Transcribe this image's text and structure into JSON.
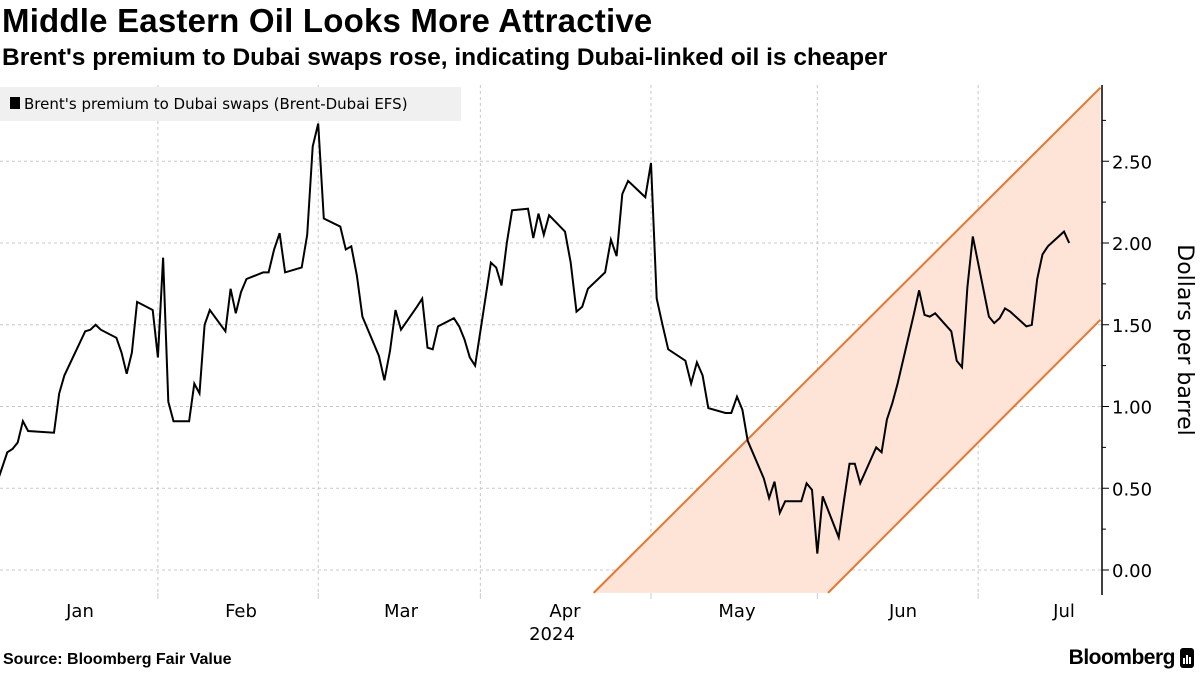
{
  "header": {
    "title": "Middle Eastern Oil Looks More Attractive",
    "subtitle": "Brent's premium to Dubai swaps rose, indicating Dubai-linked oil is cheaper"
  },
  "footer": {
    "source": "Source: Bloomberg Fair Value",
    "logo": "Bloomberg"
  },
  "chart_data": {
    "type": "line",
    "title": "Middle Eastern Oil Looks More Attractive",
    "subtitle": "Brent's premium to Dubai swaps rose, indicating Dubai-linked oil is cheaper",
    "ylabel": "Dollars per barrel",
    "xlabel": "",
    "y_axis_side": "right",
    "ylim": [
      -0.14,
      2.97
    ],
    "yticks": [
      "0.00",
      "0.50",
      "1.00",
      "1.50",
      "2.00",
      "2.50"
    ],
    "ytick_values": [
      0,
      0.5,
      1,
      1.5,
      2,
      2.5
    ],
    "minor_ytick_values": [
      0.25,
      0.75,
      1.25,
      1.75,
      2.25,
      2.75
    ],
    "xticks": [
      {
        "label": "Jan",
        "date": "2024-01-01"
      },
      {
        "label": "Feb",
        "date": "2024-02-01"
      },
      {
        "label": "Mar",
        "date": "2024-03-01"
      },
      {
        "label": "Apr",
        "date": "2024-04-01"
      },
      {
        "label": "May",
        "date": "2024-05-01"
      },
      {
        "label": "Jun",
        "date": "2024-06-01"
      },
      {
        "label": "Jul",
        "date": "2024-07-01"
      }
    ],
    "year_label": "2024",
    "grid": true,
    "legend": {
      "position": "top-left",
      "entries": [
        "Brent's premium to Dubai swaps (Brent-Dubai EFS)"
      ]
    },
    "colors": {
      "series": "#000000",
      "channel_line": "#e8762c",
      "channel_fill": "#fde4d7",
      "grid": "#c8c8c8"
    },
    "series": [
      {
        "name": "Brent's premium to Dubai swaps (Brent-Dubai EFS)",
        "x": [
          "2023-12-15",
          "2023-12-18",
          "2023-12-19",
          "2023-12-20",
          "2023-12-21",
          "2023-12-22",
          "2023-12-27",
          "2023-12-28",
          "2023-12-29",
          "2024-01-02",
          "2024-01-03",
          "2024-01-04",
          "2024-01-05",
          "2024-01-08",
          "2024-01-09",
          "2024-01-10",
          "2024-01-11",
          "2024-01-12",
          "2024-01-15",
          "2024-01-16",
          "2024-01-17",
          "2024-01-18",
          "2024-01-19",
          "2024-01-22",
          "2024-01-23",
          "2024-01-24",
          "2024-01-25",
          "2024-01-26",
          "2024-01-29",
          "2024-01-30",
          "2024-01-31",
          "2024-02-01",
          "2024-02-02",
          "2024-02-05",
          "2024-02-06",
          "2024-02-07",
          "2024-02-08",
          "2024-02-09",
          "2024-02-12",
          "2024-02-13",
          "2024-02-14",
          "2024-02-15",
          "2024-02-16",
          "2024-02-19",
          "2024-02-20",
          "2024-02-21",
          "2024-02-22",
          "2024-02-23",
          "2024-02-26",
          "2024-02-27",
          "2024-02-28",
          "2024-02-29",
          "2024-03-01",
          "2024-03-04",
          "2024-03-05",
          "2024-03-06",
          "2024-03-07",
          "2024-03-08",
          "2024-03-11",
          "2024-03-12",
          "2024-03-13",
          "2024-03-14",
          "2024-03-15",
          "2024-03-18",
          "2024-03-19",
          "2024-03-20",
          "2024-03-21",
          "2024-03-22",
          "2024-03-25",
          "2024-03-26",
          "2024-03-27",
          "2024-03-28",
          "2024-03-29",
          "2024-04-01",
          "2024-04-02",
          "2024-04-03",
          "2024-04-04",
          "2024-04-05",
          "2024-04-08",
          "2024-04-09",
          "2024-04-10",
          "2024-04-11",
          "2024-04-12",
          "2024-04-15",
          "2024-04-16",
          "2024-04-17",
          "2024-04-18",
          "2024-04-19",
          "2024-04-22",
          "2024-04-23",
          "2024-04-24",
          "2024-04-25",
          "2024-04-26",
          "2024-04-29",
          "2024-04-30",
          "2024-05-01",
          "2024-05-02",
          "2024-05-03",
          "2024-05-06",
          "2024-05-07",
          "2024-05-08",
          "2024-05-09",
          "2024-05-10",
          "2024-05-13",
          "2024-05-14",
          "2024-05-15",
          "2024-05-16",
          "2024-05-17",
          "2024-05-20",
          "2024-05-21",
          "2024-05-22",
          "2024-05-23",
          "2024-05-24",
          "2024-05-27",
          "2024-05-28",
          "2024-05-29",
          "2024-05-30",
          "2024-05-31",
          "2024-06-03",
          "2024-06-04",
          "2024-06-05",
          "2024-06-06",
          "2024-06-07",
          "2024-06-10",
          "2024-06-11",
          "2024-06-12",
          "2024-06-13",
          "2024-06-14",
          "2024-06-17",
          "2024-06-18",
          "2024-06-19",
          "2024-06-20",
          "2024-06-21",
          "2024-06-24",
          "2024-06-25",
          "2024-06-26",
          "2024-06-27",
          "2024-06-28",
          "2024-07-01",
          "2024-07-02"
        ],
        "values": [
          0.44,
          0.72,
          0.74,
          0.78,
          0.91,
          0.85,
          0.84,
          1.08,
          1.19,
          1.46,
          1.47,
          1.5,
          1.47,
          1.42,
          1.33,
          1.2,
          1.33,
          1.64,
          1.59,
          1.3,
          1.91,
          1.03,
          0.91,
          0.91,
          1.14,
          1.08,
          1.5,
          1.59,
          1.46,
          1.72,
          1.57,
          1.7,
          1.78,
          1.82,
          1.82,
          1.96,
          2.06,
          1.82,
          1.85,
          2.05,
          2.59,
          2.73,
          2.15,
          2.1,
          1.96,
          1.98,
          1.8,
          1.55,
          1.31,
          1.16,
          1.34,
          1.59,
          1.47,
          1.61,
          1.66,
          1.36,
          1.35,
          1.49,
          1.54,
          1.49,
          1.41,
          1.3,
          1.25,
          1.88,
          1.85,
          1.74,
          2.0,
          2.2,
          2.21,
          2.03,
          2.18,
          2.05,
          2.17,
          2.07,
          1.88,
          1.58,
          1.61,
          1.72,
          1.82,
          2.02,
          1.92,
          2.3,
          2.38,
          2.28,
          2.49,
          1.66,
          1.5,
          1.35,
          1.28,
          1.14,
          1.27,
          1.19,
          0.99,
          0.96,
          0.96,
          1.06,
          0.98,
          0.79,
          0.56,
          0.44,
          0.54,
          0.35,
          0.42,
          0.42,
          0.53,
          0.49,
          0.1,
          0.45,
          0.2,
          0.43,
          0.65,
          0.65,
          0.53,
          0.75,
          0.72,
          0.92,
          1.02,
          1.14,
          1.56,
          1.71,
          1.56,
          1.55,
          1.57,
          1.46,
          1.28,
          1.24,
          1.73,
          2.04,
          1.55,
          1.51,
          1.54,
          1.6,
          1.58,
          1.49,
          1.5,
          1.78,
          1.93,
          1.98,
          2.07,
          2.0
        ]
      }
    ],
    "annotations": [
      {
        "type": "channel",
        "upper": {
          "start": {
            "date": "2024-04-06",
            "value": -0.14
          },
          "end": {
            "date": "2024-07-08",
            "value": 2.95
          }
        },
        "lower": {
          "start": {
            "date": "2024-05-18",
            "value": -0.14
          },
          "end": {
            "date": "2024-07-08",
            "value": 1.53
          }
        }
      }
    ]
  }
}
